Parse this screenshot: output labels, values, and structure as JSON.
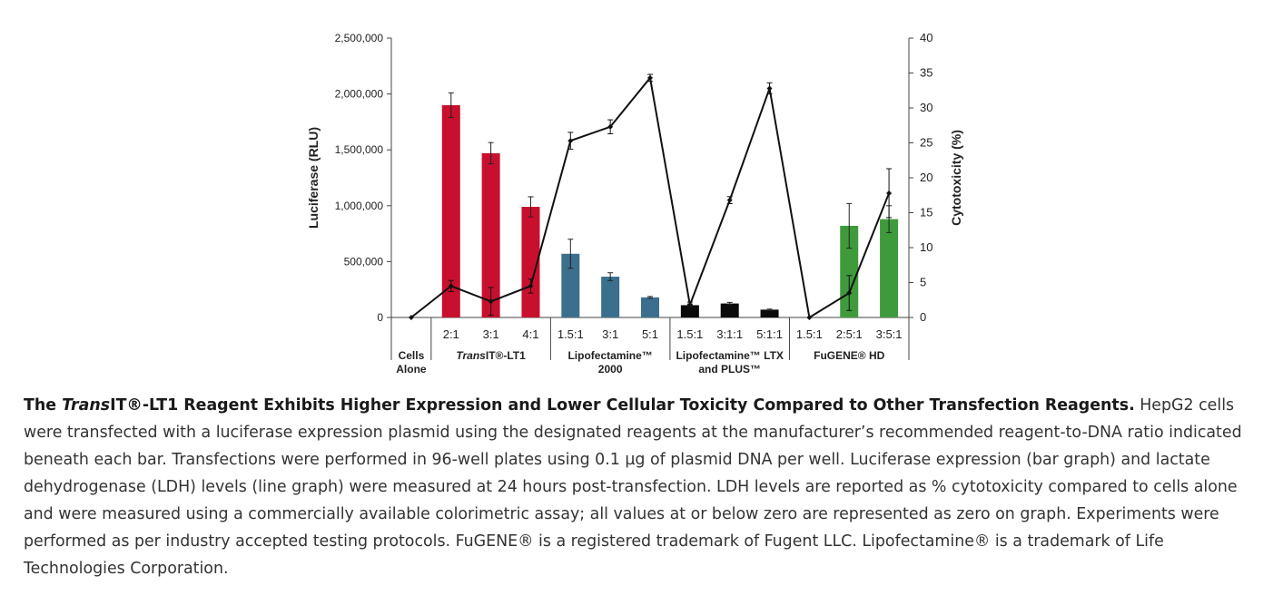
{
  "chart_data": {
    "type": "bar",
    "bar_series": {
      "name": "Luciferase (RLU)",
      "ylabel": "Luciferase (RLU)",
      "ylim": [
        0,
        2500000
      ],
      "yticks": [
        0,
        500000,
        1000000,
        1500000,
        2000000,
        2500000
      ],
      "ytick_labels": [
        "0",
        "500,000",
        "1,000,000",
        "1,500,000",
        "2,000,000",
        "2,500,000"
      ]
    },
    "line_series": {
      "name": "Cytotoxicity (%)",
      "ylabel": "Cytotoxicity (%)",
      "ylim": [
        0,
        40
      ],
      "yticks": [
        0,
        5,
        10,
        15,
        20,
        25,
        30,
        35,
        40
      ],
      "ytick_labels": [
        "0",
        "5",
        "10",
        "15",
        "20",
        "25",
        "30",
        "35",
        "40"
      ]
    },
    "categories": [
      {
        "ratio": "",
        "group": "cells",
        "color": "#000000",
        "luciferase": 0,
        "luciferase_err": 0,
        "cytotoxicity": 0,
        "cytotoxicity_err": 0
      },
      {
        "ratio": "2:1",
        "group": "transit",
        "color": "#c8102e",
        "luciferase": 1900000,
        "luciferase_err": 110000,
        "cytotoxicity": 4.5,
        "cytotoxicity_err": 0.8
      },
      {
        "ratio": "3:1",
        "group": "transit",
        "color": "#c8102e",
        "luciferase": 1470000,
        "luciferase_err": 95000,
        "cytotoxicity": 2.3,
        "cytotoxicity_err": 2.0
      },
      {
        "ratio": "4:1",
        "group": "transit",
        "color": "#c8102e",
        "luciferase": 990000,
        "luciferase_err": 90000,
        "cytotoxicity": 4.5,
        "cytotoxicity_err": 1.0
      },
      {
        "ratio": "1.5:1",
        "group": "lipo2000",
        "color": "#3c6f8e",
        "luciferase": 570000,
        "luciferase_err": 130000,
        "cytotoxicity": 25.3,
        "cytotoxicity_err": 1.2
      },
      {
        "ratio": "3:1",
        "group": "lipo2000",
        "color": "#3c6f8e",
        "luciferase": 365000,
        "luciferase_err": 35000,
        "cytotoxicity": 27.3,
        "cytotoxicity_err": 1.0
      },
      {
        "ratio": "5:1",
        "group": "lipo2000",
        "color": "#3c6f8e",
        "luciferase": 180000,
        "luciferase_err": 8000,
        "cytotoxicity": 34.3,
        "cytotoxicity_err": 0.5
      },
      {
        "ratio": "1.5:1",
        "group": "ltx",
        "color": "#0a0a0a",
        "luciferase": 110000,
        "luciferase_err": 10000,
        "cytotoxicity": 1.8,
        "cytotoxicity_err": 0.4
      },
      {
        "ratio": "3:1:1",
        "group": "ltx",
        "color": "#0a0a0a",
        "luciferase": 125000,
        "luciferase_err": 10000,
        "cytotoxicity": 16.8,
        "cytotoxicity_err": 0.5
      },
      {
        "ratio": "5:1:1",
        "group": "ltx",
        "color": "#0a0a0a",
        "luciferase": 70000,
        "luciferase_err": 5000,
        "cytotoxicity": 32.8,
        "cytotoxicity_err": 0.8
      },
      {
        "ratio": "1.5:1",
        "group": "fugene",
        "color": "#3f9a3c",
        "luciferase": 0,
        "luciferase_err": 0,
        "cytotoxicity": 0,
        "cytotoxicity_err": 0
      },
      {
        "ratio": "2:5:1",
        "group": "fugene",
        "color": "#3f9a3c",
        "luciferase": 820000,
        "luciferase_err": 200000,
        "cytotoxicity": 3.5,
        "cytotoxicity_err": 2.5
      },
      {
        "ratio": "3:5:1",
        "group": "fugene",
        "color": "#3f9a3c",
        "luciferase": 880000,
        "luciferase_err": 120000,
        "cytotoxicity": 17.8,
        "cytotoxicity_err": 3.5
      }
    ],
    "groups": [
      {
        "id": "cells",
        "label_lines": [
          "Cells",
          "Alone"
        ]
      },
      {
        "id": "transit",
        "label_parts": {
          "italic": "Trans",
          "rest": "IT®-LT1"
        }
      },
      {
        "id": "lipo2000",
        "label_lines": [
          "Lipofectamine™",
          "2000"
        ]
      },
      {
        "id": "ltx",
        "label_lines": [
          "Lipofectamine™ LTX",
          "and PLUS™"
        ]
      },
      {
        "id": "fugene",
        "label_lines": [
          "FuGENE® HD"
        ]
      }
    ]
  },
  "caption": {
    "title_prefix": "The ",
    "title_italic": "Trans",
    "title_rest": "IT®-LT1 Reagent Exhibits Higher Expression and Lower Cellular Toxicity Compared to Other Transfection Reagents.",
    "body": " HepG2 cells were transfected with a luciferase expression plasmid using the designated reagents at the manufacturer’s recommended reagent-to-DNA ratio indicated beneath each bar. Transfections were performed in 96-well plates using 0.1 µg of plasmid DNA per well. Luciferase expression (bar graph) and lactate dehydrogenase (LDH) levels (line graph) were measured at 24 hours post-transfection. LDH levels are reported as % cytotoxicity compared to cells alone and were measured using a commercially available colorimetric assay; all values at or below zero are represented as zero on graph. Experiments were performed as per industry accepted testing protocols. FuGENE® is a registered trademark of Fugent LLC. Lipofectamine® is a trademark of Life Technologies Corporation."
  }
}
